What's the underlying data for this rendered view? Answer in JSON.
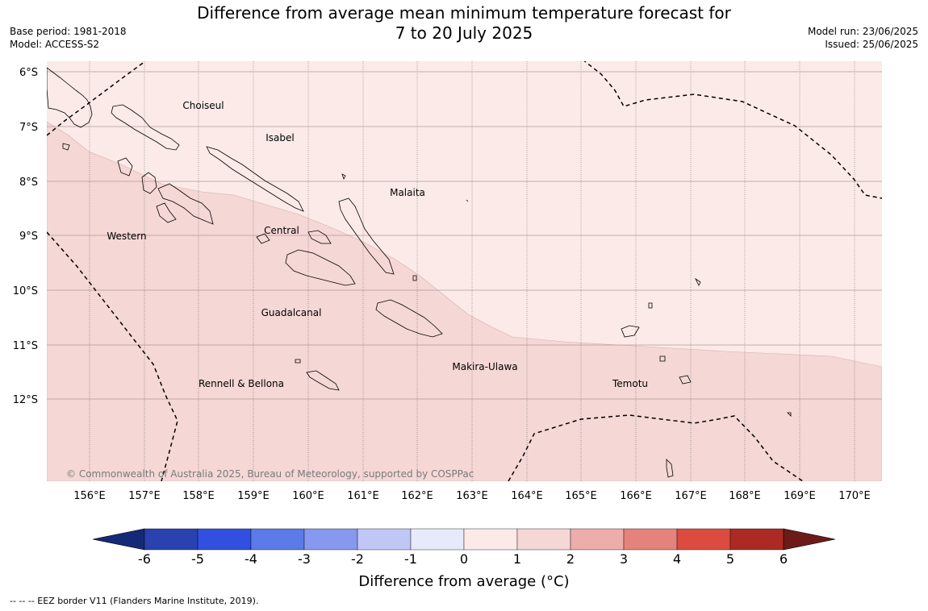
{
  "header": {
    "title_line1": "Difference from average mean minimum temperature forecast for",
    "title_line2": "7 to 20 July 2025",
    "base_period": "Base period: 1981-2018",
    "model": "Model: ACCESS-S2",
    "model_run": "Model run: 23/06/2025",
    "issued": "Issued: 25/06/2025"
  },
  "map": {
    "lon_labels": [
      "156°E",
      "157°E",
      "158°E",
      "159°E",
      "160°E",
      "161°E",
      "162°E",
      "163°E",
      "164°E",
      "165°E",
      "166°E",
      "167°E",
      "168°E",
      "169°E",
      "170°E"
    ],
    "lat_labels": [
      "6°S",
      "7°S",
      "8°S",
      "9°S",
      "10°S",
      "11°S",
      "12°S"
    ],
    "province_labels": [
      "Choiseul",
      "Isabel",
      "Malaita",
      "Western",
      "Central",
      "Guadalcanal",
      "Makira-Ulawa",
      "Rennell & Bellona",
      "Temotu"
    ],
    "copyright": "© Commonwealth of Australia 2025, Bureau of Meteorology, supported by COSPPac",
    "fill_colors": {
      "band_0_1": "#fbeae8",
      "band_1_2": "#f5d7d5",
      "coastline": "#000000",
      "eez_line": "#000000",
      "grid": "#555555"
    }
  },
  "colorbar": {
    "ticks": [
      "-6",
      "-5",
      "-4",
      "-3",
      "-2",
      "-1",
      "0",
      "1",
      "2",
      "3",
      "4",
      "5",
      "6"
    ],
    "colors": [
      "#152a77",
      "#2a41b0",
      "#3150df",
      "#5c7be8",
      "#8799ee",
      "#c1c7f5",
      "#e7eafb",
      "#fbeae8",
      "#f5d7d5",
      "#edadaa",
      "#e4837b",
      "#dc4b3f",
      "#ab2b24",
      "#6d1b18"
    ],
    "label": "Difference from average (°C)"
  },
  "footer": {
    "eez_note": "--  --  -- EEZ border V11 (Flanders Marine Institute, 2019)."
  }
}
